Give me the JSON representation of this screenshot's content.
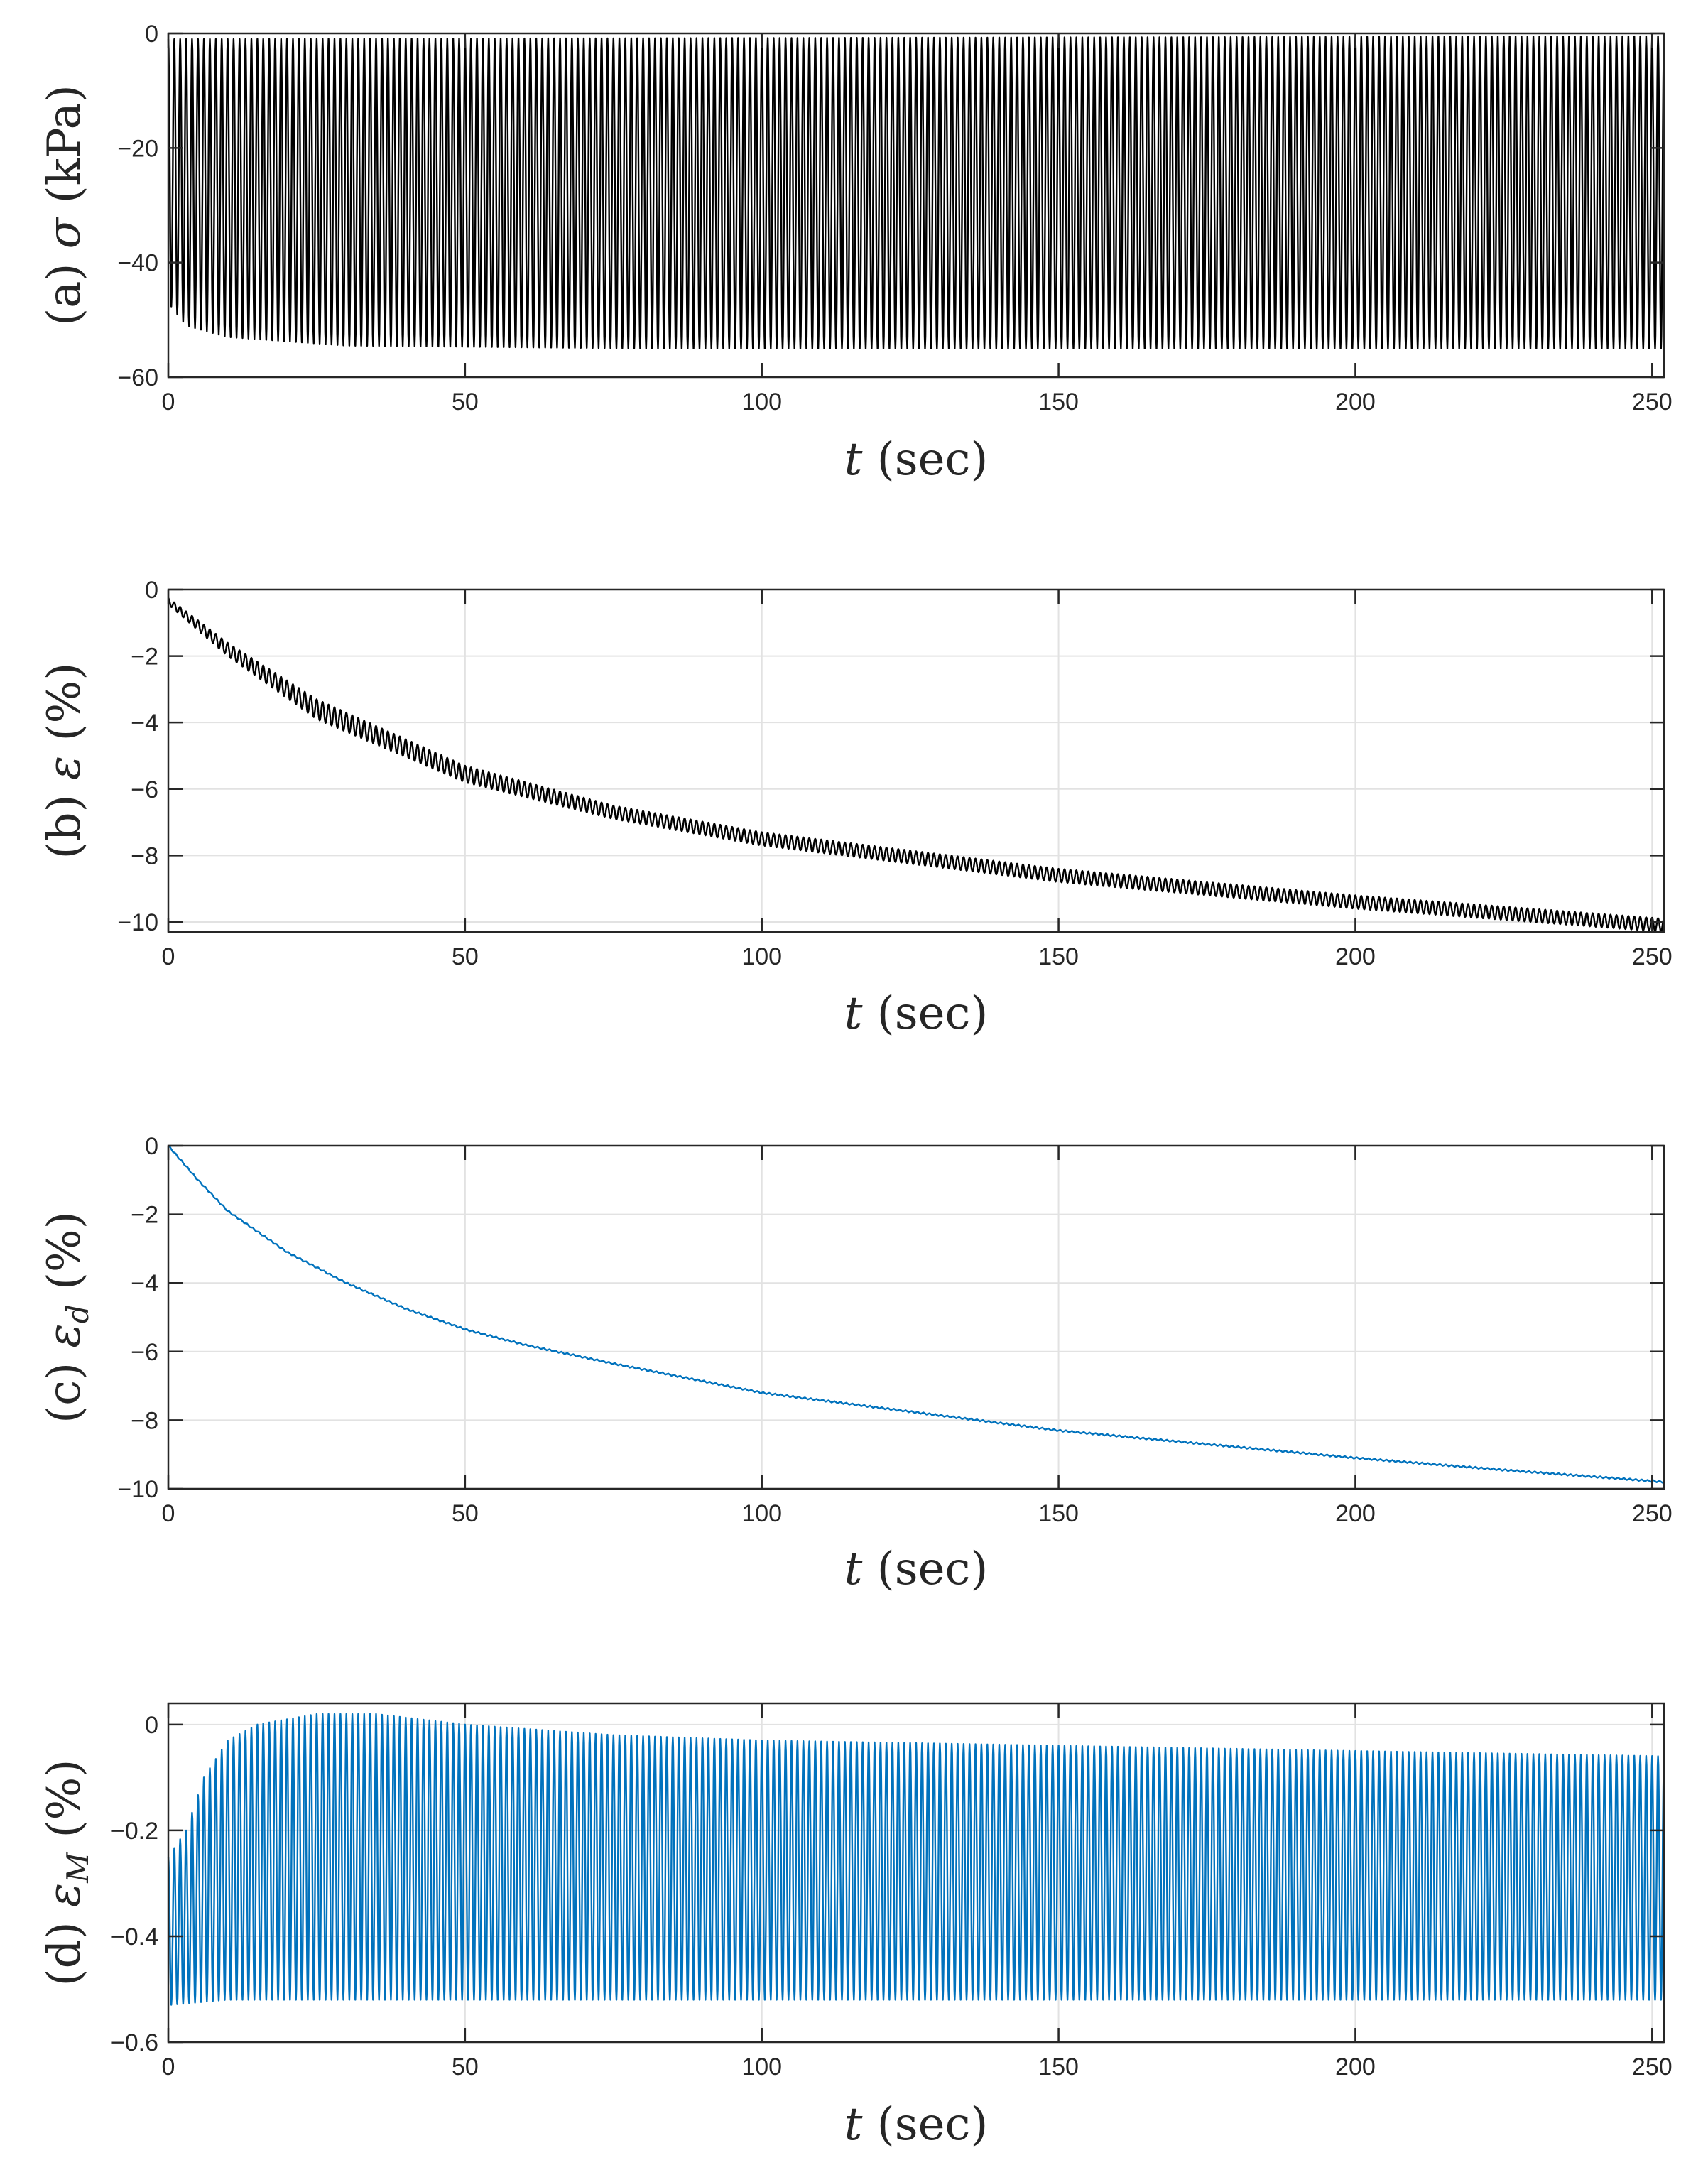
{
  "colors": {
    "black": "#000000",
    "blue": "#0072BD",
    "grid": "#e2e2e2",
    "axis": "#262626"
  },
  "chart_data": [
    {
      "id": "a",
      "type": "line",
      "color": "black",
      "grid": false,
      "xlim": [
        0,
        252
      ],
      "ylim": [
        -60,
        0
      ],
      "xticks": [
        0,
        50,
        100,
        150,
        200,
        250
      ],
      "yticks": [
        -60,
        -40,
        -20,
        0
      ],
      "xlabel": {
        "var": "t",
        "unit": "(sec)"
      },
      "ylabel": {
        "prefix": "(a)",
        "var": "σ",
        "sub": "",
        "unit": "(kPa)"
      },
      "signal": {
        "kind": "cyclic",
        "period": 1.0,
        "upper": [
          [
            0,
            -1
          ],
          [
            252,
            -0.5
          ]
        ],
        "lower": [
          [
            0,
            -47
          ],
          [
            3,
            -51
          ],
          [
            10,
            -53
          ],
          [
            30,
            -54.5
          ],
          [
            80,
            -55
          ],
          [
            252,
            -55
          ]
        ]
      }
    },
    {
      "id": "b",
      "type": "line",
      "color": "black",
      "grid": true,
      "xlim": [
        0,
        252
      ],
      "ylim": [
        -10.3,
        0
      ],
      "xticks": [
        0,
        50,
        100,
        150,
        200,
        250
      ],
      "yticks": [
        -10,
        -8,
        -6,
        -4,
        -2,
        0
      ],
      "xlabel": {
        "var": "t",
        "unit": "(sec)"
      },
      "ylabel": {
        "prefix": "(b)",
        "var": "ε",
        "sub": "",
        "unit": "(%)"
      },
      "signal": {
        "kind": "cyclic",
        "period": 1.0,
        "upper": [
          [
            0,
            -0.25
          ],
          [
            10,
            -1.6
          ],
          [
            25,
            -3.3
          ],
          [
            50,
            -5.3
          ],
          [
            75,
            -6.5
          ],
          [
            100,
            -7.3
          ],
          [
            150,
            -8.4
          ],
          [
            200,
            -9.2
          ],
          [
            252,
            -9.9
          ]
        ],
        "lower": [
          [
            0,
            -0.45
          ],
          [
            10,
            -2.0
          ],
          [
            25,
            -3.9
          ],
          [
            50,
            -5.8
          ],
          [
            75,
            -6.9
          ],
          [
            100,
            -7.7
          ],
          [
            150,
            -8.8
          ],
          [
            200,
            -9.6
          ],
          [
            252,
            -10.3
          ]
        ]
      }
    },
    {
      "id": "c",
      "type": "line",
      "color": "blue",
      "grid": true,
      "xlim": [
        0,
        252
      ],
      "ylim": [
        -10,
        0
      ],
      "xticks": [
        0,
        50,
        100,
        150,
        200,
        250
      ],
      "yticks": [
        -10,
        -8,
        -6,
        -4,
        -2,
        0
      ],
      "xlabel": {
        "var": "t",
        "unit": "(sec)"
      },
      "ylabel": {
        "prefix": "(c)",
        "var": "ε",
        "sub": "d",
        "unit": "(%)"
      },
      "signal": {
        "kind": "smooth",
        "points": [
          [
            0,
            0
          ],
          [
            5,
            -1.0
          ],
          [
            10,
            -1.9
          ],
          [
            20,
            -3.1
          ],
          [
            30,
            -4.0
          ],
          [
            40,
            -4.75
          ],
          [
            50,
            -5.35
          ],
          [
            60,
            -5.8
          ],
          [
            75,
            -6.35
          ],
          [
            100,
            -7.2
          ],
          [
            125,
            -7.75
          ],
          [
            150,
            -8.3
          ],
          [
            175,
            -8.7
          ],
          [
            200,
            -9.1
          ],
          [
            225,
            -9.45
          ],
          [
            252,
            -9.8
          ]
        ]
      }
    },
    {
      "id": "d",
      "type": "line",
      "color": "blue",
      "grid": true,
      "xlim": [
        0,
        252
      ],
      "ylim": [
        -0.6,
        0.04
      ],
      "xticks": [
        0,
        50,
        100,
        150,
        200,
        250
      ],
      "yticks": [
        -0.6,
        -0.4,
        -0.2,
        0
      ],
      "xlabel": {
        "var": "t",
        "unit": "(sec)"
      },
      "ylabel": {
        "prefix": "(d)",
        "var": "ε",
        "sub": "M",
        "unit": "(%)"
      },
      "signal": {
        "kind": "cyclic",
        "period": 1.0,
        "upper": [
          [
            0,
            -0.25
          ],
          [
            3,
            -0.2
          ],
          [
            6,
            -0.1
          ],
          [
            10,
            -0.03
          ],
          [
            15,
            0.0
          ],
          [
            25,
            0.02
          ],
          [
            35,
            0.02
          ],
          [
            50,
            0.0
          ],
          [
            75,
            -0.02
          ],
          [
            100,
            -0.03
          ],
          [
            150,
            -0.04
          ],
          [
            200,
            -0.05
          ],
          [
            252,
            -0.06
          ]
        ],
        "lower": [
          [
            0,
            -0.53
          ],
          [
            10,
            -0.52
          ],
          [
            50,
            -0.52
          ],
          [
            100,
            -0.52
          ],
          [
            150,
            -0.52
          ],
          [
            200,
            -0.52
          ],
          [
            252,
            -0.52
          ]
        ]
      }
    }
  ]
}
